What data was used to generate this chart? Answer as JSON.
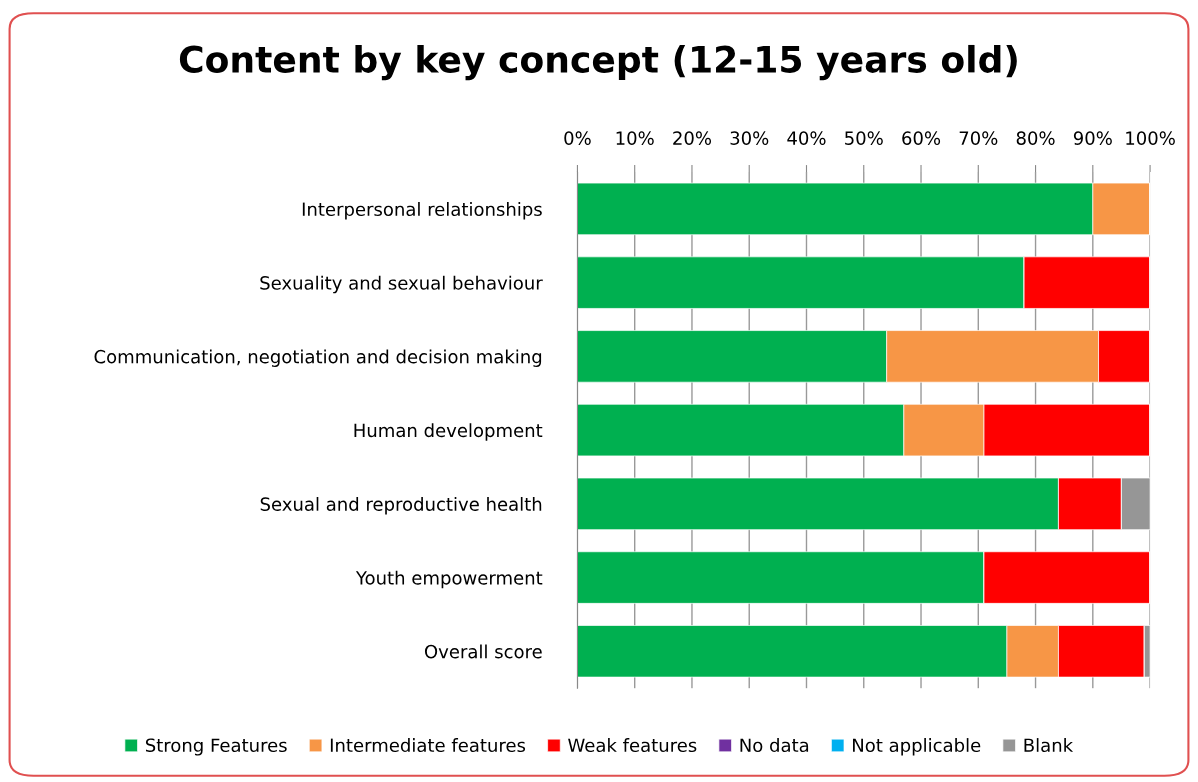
{
  "chart_data": {
    "type": "bar",
    "orientation": "horizontal",
    "stacked": true,
    "title": "Content by key concept (12-15 years old)",
    "categories": [
      "Interpersonal relationships",
      "Sexuality and sexual behaviour",
      "Communication, negotiation and decision making",
      "Human development",
      "Sexual and reproductive health",
      "Youth empowerment",
      "Overall score"
    ],
    "series": [
      {
        "name": "Strong Features",
        "color": "#00b050",
        "values": [
          90,
          78,
          54,
          57,
          84,
          71,
          75
        ]
      },
      {
        "name": "Intermediate features",
        "color": "#f79646",
        "values": [
          10,
          0,
          37,
          14,
          0,
          0,
          9
        ]
      },
      {
        "name": "Weak features",
        "color": "#ff0000",
        "values": [
          0,
          22,
          9,
          29,
          11,
          29,
          15
        ]
      },
      {
        "name": "No data",
        "color": "#7030a0",
        "values": [
          0,
          0,
          0,
          0,
          0,
          0,
          0
        ]
      },
      {
        "name": "Not applicable",
        "color": "#00b0f0",
        "values": [
          0,
          0,
          0,
          0,
          0,
          0,
          0
        ]
      },
      {
        "name": "Blank",
        "color": "#969696",
        "values": [
          0,
          0,
          0,
          0,
          5,
          0,
          1
        ]
      }
    ],
    "xlim": [
      0,
      100
    ],
    "xticks": [
      {
        "value": 0,
        "label": "0%"
      },
      {
        "value": 10,
        "label": "10%"
      },
      {
        "value": 20,
        "label": "20%"
      },
      {
        "value": 30,
        "label": "30%"
      },
      {
        "value": 40,
        "label": "40%"
      },
      {
        "value": 50,
        "label": "50%"
      },
      {
        "value": 60,
        "label": "60%"
      },
      {
        "value": 70,
        "label": "70%"
      },
      {
        "value": 80,
        "label": "80%"
      },
      {
        "value": 90,
        "label": "90%"
      },
      {
        "value": 100,
        "label": "100%"
      }
    ],
    "legend": "bottom",
    "grid": "x"
  }
}
